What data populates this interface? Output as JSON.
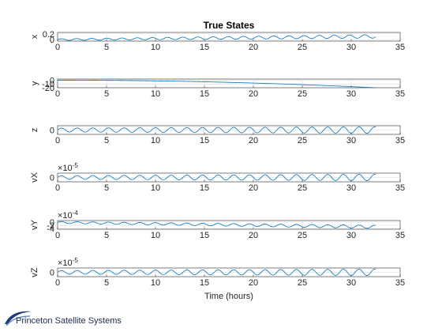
{
  "chart_data": {
    "type": "line",
    "title": "True States",
    "xlabel": "Time (hours)",
    "xlim": [
      0,
      35
    ],
    "xticks": [
      0,
      5,
      10,
      15,
      20,
      25,
      30,
      35
    ],
    "grid": true,
    "line_color": "#0072BD",
    "panels": [
      {
        "ylabel": "x",
        "yticks": [
          "0.2",
          "0"
        ],
        "ytick_values": [
          0.2,
          0
        ],
        "ylim": [
          -0.05,
          0.25
        ],
        "exponent": "",
        "series": {
          "x_end": 32.5,
          "kind": "growing-oscillation",
          "offset": 0.05,
          "trend": 0.0035,
          "amp_start": 0.03,
          "amp_end": 0.06,
          "period_hours": 1.55
        }
      },
      {
        "ylabel": "y",
        "yticks": [
          "0",
          "-10",
          "-20"
        ],
        "ytick_values": [
          0,
          -10,
          -20
        ],
        "ylim": [
          -20,
          3
        ],
        "exponent": "",
        "series": {
          "x_end": 32.5,
          "kind": "quadratic-drift",
          "start": 0,
          "end": -20
        }
      },
      {
        "ylabel": "z",
        "yticks": [
          "0"
        ],
        "ytick_values": [
          0
        ],
        "ylim": [
          -1,
          1
        ],
        "exponent": "",
        "series": {
          "x_end": 32.5,
          "kind": "oscillation",
          "amp_start": 0.45,
          "amp_end": 0.75,
          "period_hours": 1.6
        }
      },
      {
        "ylabel": "vX",
        "yticks": [
          "0"
        ],
        "ytick_values": [
          0
        ],
        "ylim": [
          -1,
          1
        ],
        "exponent": "-5",
        "series": {
          "x_end": 32.5,
          "kind": "oscillation",
          "amp_start": 0.4,
          "amp_end": 0.75,
          "period_hours": 1.6
        }
      },
      {
        "ylabel": "vY",
        "yticks": [
          "0",
          "-2",
          "-4"
        ],
        "ytick_values": [
          0,
          -2,
          -4
        ],
        "ylim": [
          -4.5,
          1
        ],
        "exponent": "-4",
        "series": {
          "x_end": 32.5,
          "kind": "drift-oscillation",
          "start": -0.2,
          "end": -3.0,
          "amp_start": 0.6,
          "amp_end": 1.0,
          "period_hours": 1.6
        }
      },
      {
        "ylabel": "vZ",
        "yticks": [
          "0"
        ],
        "ytick_values": [
          0
        ],
        "ylim": [
          -1,
          1
        ],
        "exponent": "-5",
        "series": {
          "x_end": 32.5,
          "kind": "oscillation",
          "amp_start": 0.4,
          "amp_end": 0.75,
          "period_hours": 1.6
        }
      }
    ]
  },
  "branding": {
    "company": "Princeton Satellite Systems"
  }
}
